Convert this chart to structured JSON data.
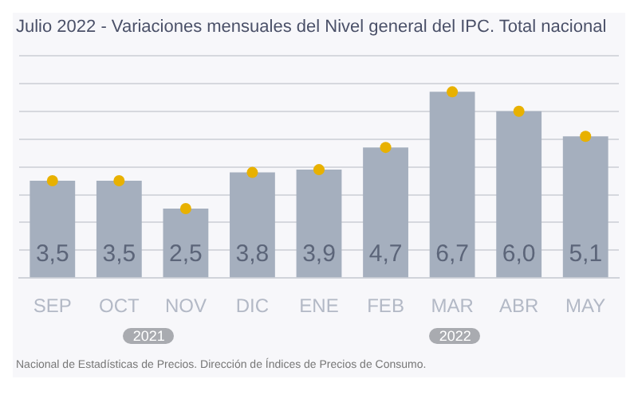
{
  "chart_data": {
    "type": "bar",
    "title": "Julio 2022 - Variaciones mensuales del Nivel general del IPC. Total nacional",
    "categories": [
      "SEP",
      "OCT",
      "NOV",
      "DIC",
      "ENE",
      "FEB",
      "MAR",
      "ABR",
      "MAY"
    ],
    "series": [
      {
        "color": "#a5afbe",
        "values": [
          3.5,
          3.5,
          2.5,
          3.8,
          3.9,
          4.7,
          6.7,
          6.0,
          5.1
        ],
        "value_labels": [
          "3,5",
          "3,5",
          "2,5",
          "3,8",
          "3,9",
          "4,7",
          "6,7",
          "6,0",
          "5,1"
        ]
      },
      {
        "type": "scatter",
        "color": "#e8b100",
        "values": [
          3.5,
          3.5,
          2.5,
          3.8,
          3.9,
          4.7,
          6.7,
          6.0,
          5.1
        ]
      }
    ],
    "ylim": [
      0,
      8
    ],
    "yticks": [
      0,
      1,
      2,
      3,
      4,
      5,
      6,
      7,
      8
    ],
    "grid": "y",
    "tick_labels": "x",
    "marker": "circle",
    "legend": false,
    "annotations": [
      "2021",
      "2022",
      "Nacional de Estadísticas de Precios. Dirección de Índices de Precios de Consumo."
    ]
  }
}
